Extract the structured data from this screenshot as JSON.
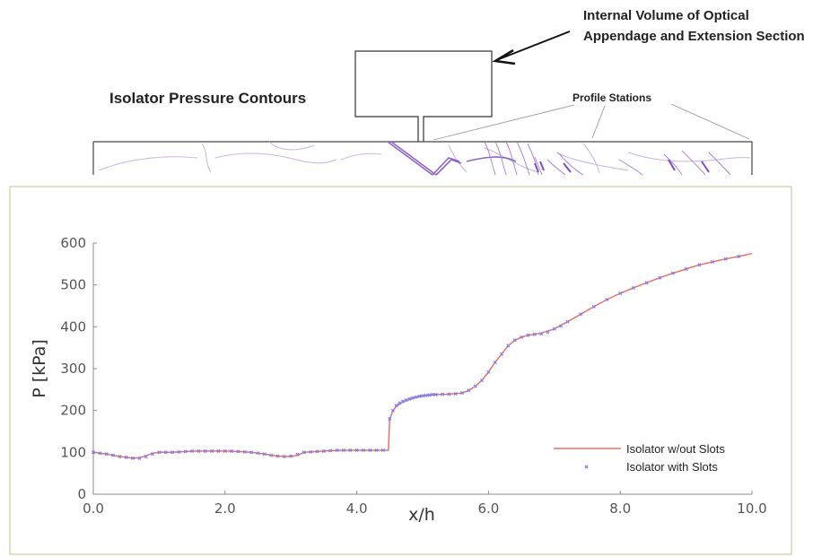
{
  "annotations": {
    "internal_volume": [
      "Internal Volume of Optical",
      "Appendage and Extension Section"
    ],
    "contour_title": "Isolator Pressure Contours",
    "profile_stations": "Profile Stations"
  },
  "colors": {
    "line_series": "#e8706a",
    "marker_series": "#7a7ef0",
    "contour": "#9b6fc7",
    "panel_border": "#b5c98a"
  },
  "chart_data": {
    "type": "line",
    "xlabel": "x/h",
    "ylabel": "P [kPa]",
    "xlim": [
      0,
      10
    ],
    "ylim": [
      0,
      600
    ],
    "x_ticks": [
      "0.0",
      "2.0",
      "4.0",
      "6.0",
      "8.0",
      "10.0"
    ],
    "y_ticks": [
      "0",
      "100",
      "200",
      "300",
      "400",
      "500",
      "600"
    ],
    "grid": false,
    "legend_position": "bottom-right",
    "series": [
      {
        "name": "Isolator w/out Slots",
        "style": "line",
        "x": [
          0.0,
          0.2,
          0.4,
          0.6,
          0.7,
          0.8,
          0.9,
          1.0,
          1.2,
          1.4,
          1.6,
          1.8,
          2.0,
          2.2,
          2.4,
          2.6,
          2.8,
          3.0,
          3.1,
          3.2,
          3.4,
          3.6,
          3.8,
          4.0,
          4.2,
          4.4,
          4.48,
          4.5,
          4.55,
          4.6,
          4.7,
          4.8,
          4.9,
          5.0,
          5.2,
          5.4,
          5.6,
          5.7,
          5.8,
          5.9,
          6.0,
          6.1,
          6.2,
          6.3,
          6.4,
          6.5,
          6.6,
          6.7,
          6.8,
          7.0,
          7.2,
          7.4,
          7.6,
          7.8,
          8.0,
          8.2,
          8.4,
          8.6,
          8.8,
          9.0,
          9.2,
          9.4,
          9.6,
          9.8,
          10.0
        ],
        "y": [
          100,
          96,
          90,
          86,
          87,
          92,
          98,
          100,
          100,
          102,
          103,
          103,
          103,
          102,
          100,
          96,
          91,
          90,
          93,
          100,
          102,
          104,
          105,
          105,
          105,
          105,
          105,
          180,
          200,
          210,
          220,
          226,
          232,
          235,
          238,
          239,
          242,
          248,
          258,
          272,
          292,
          315,
          335,
          355,
          368,
          375,
          380,
          382,
          385,
          395,
          412,
          430,
          448,
          465,
          480,
          493,
          505,
          517,
          528,
          538,
          548,
          555,
          562,
          568,
          575
        ]
      },
      {
        "name": "Isolator with Slots",
        "style": "markers",
        "x": [
          0.0,
          0.1,
          0.2,
          0.3,
          0.4,
          0.5,
          0.6,
          0.7,
          0.8,
          0.9,
          1.0,
          1.1,
          1.2,
          1.3,
          1.4,
          1.5,
          1.6,
          1.7,
          1.8,
          1.9,
          2.0,
          2.1,
          2.2,
          2.3,
          2.4,
          2.5,
          2.6,
          2.7,
          2.8,
          2.9,
          3.0,
          3.1,
          3.2,
          3.3,
          3.4,
          3.5,
          3.6,
          3.7,
          3.8,
          3.9,
          4.0,
          4.1,
          4.2,
          4.3,
          4.4,
          4.5,
          4.55,
          4.6,
          4.65,
          4.7,
          4.75,
          4.8,
          4.85,
          4.9,
          4.95,
          5.0,
          5.05,
          5.1,
          5.15,
          5.2,
          5.3,
          5.4,
          5.5,
          5.6,
          5.7,
          5.8,
          5.9,
          6.0,
          6.1,
          6.2,
          6.3,
          6.4,
          6.5,
          6.6,
          6.7,
          6.8,
          6.9,
          7.0,
          7.1,
          7.2,
          7.4,
          7.6,
          7.8,
          8.0,
          8.2,
          8.4,
          8.6,
          8.8,
          9.0,
          9.2,
          9.4,
          9.6,
          9.8
        ],
        "y": [
          100,
          98,
          96,
          93,
          90,
          88,
          86,
          86,
          90,
          96,
          100,
          100,
          100,
          101,
          102,
          103,
          103,
          103,
          103,
          103,
          103,
          103,
          102,
          101,
          100,
          98,
          96,
          93,
          91,
          90,
          91,
          95,
          100,
          101,
          102,
          103,
          104,
          105,
          105,
          105,
          105,
          105,
          105,
          105,
          105,
          180,
          200,
          212,
          218,
          222,
          225,
          228,
          230,
          232,
          234,
          235,
          236,
          237,
          238,
          238,
          239,
          239,
          240,
          242,
          248,
          258,
          272,
          292,
          315,
          335,
          355,
          368,
          375,
          380,
          382,
          383,
          387,
          395,
          402,
          412,
          430,
          448,
          465,
          480,
          493,
          505,
          517,
          528,
          538,
          548,
          555,
          562,
          568
        ]
      }
    ]
  }
}
